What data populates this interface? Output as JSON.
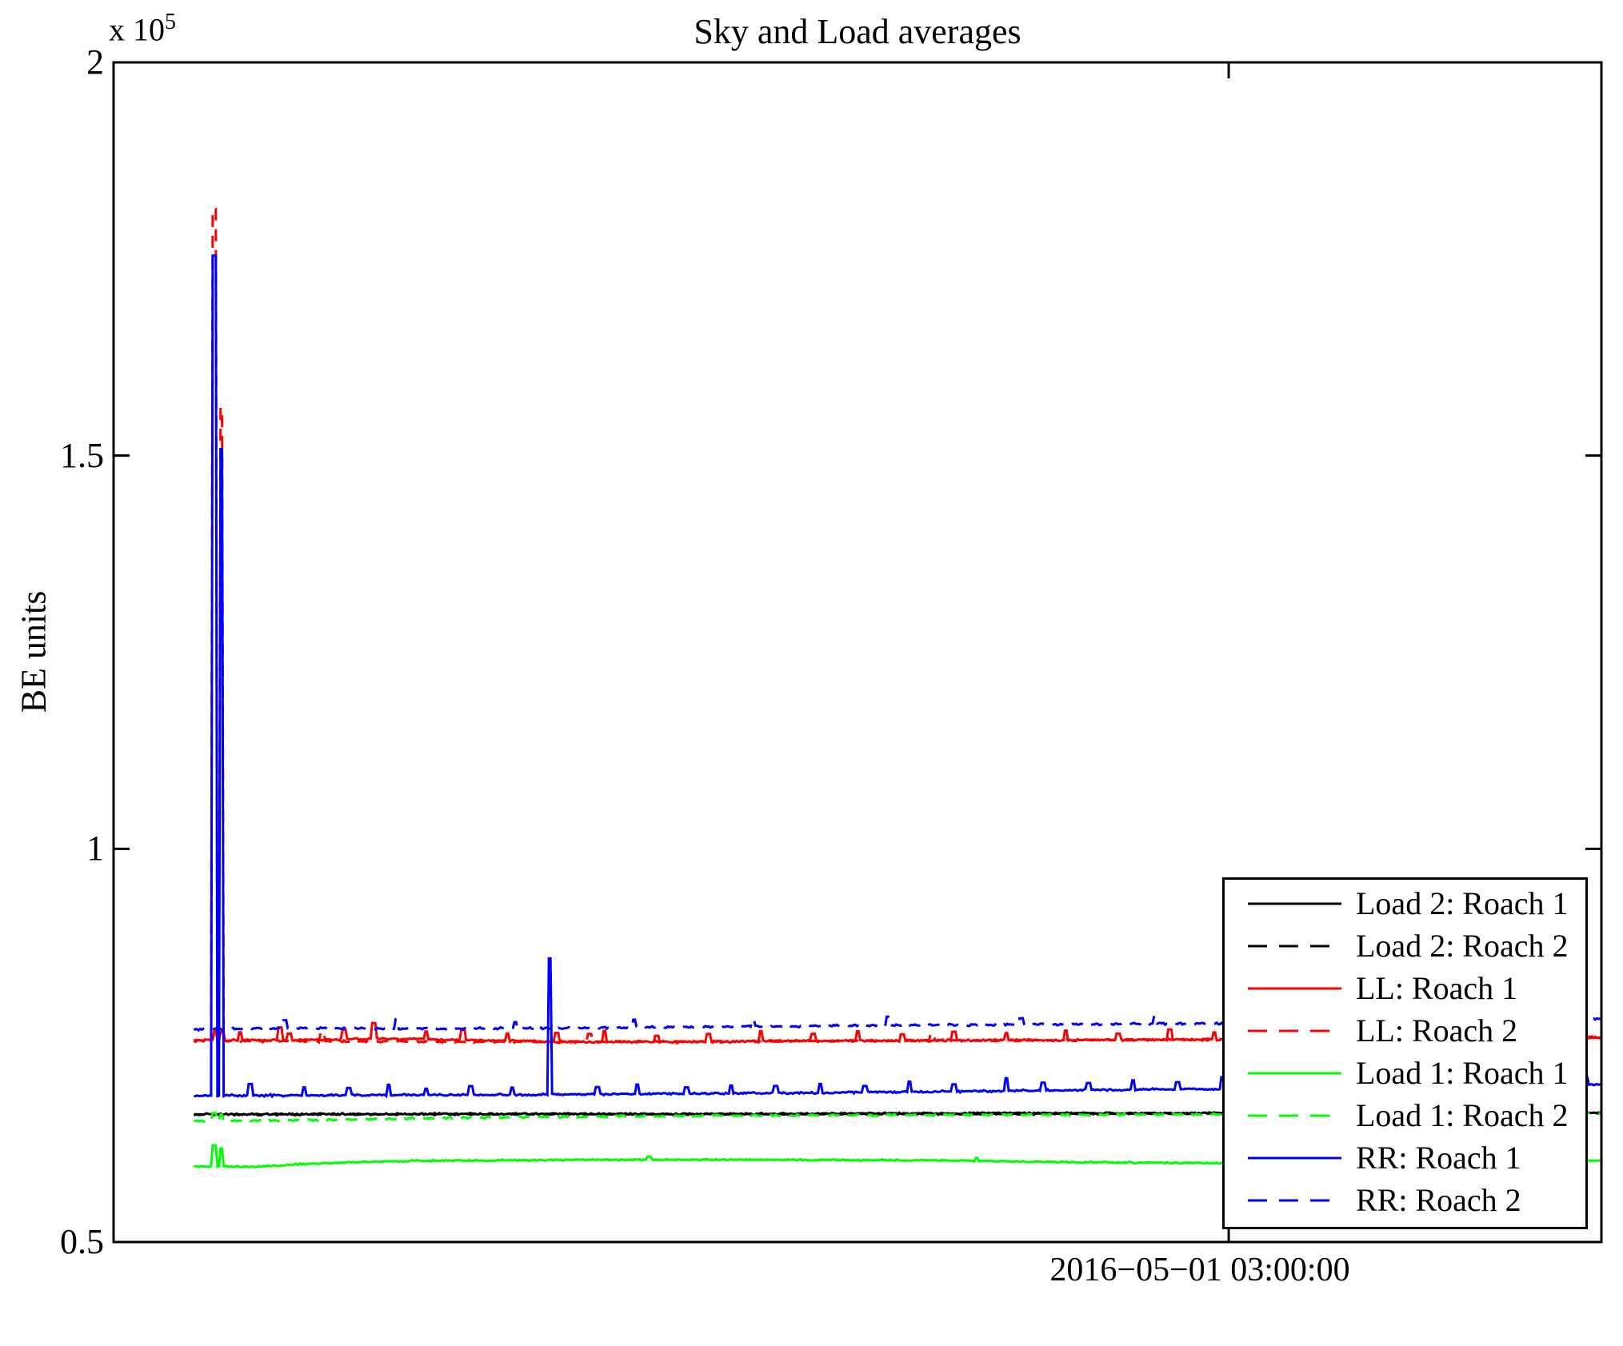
{
  "figure": {
    "background": "#ffffff"
  },
  "chart_data": {
    "type": "line",
    "title": "Sky and Load averages",
    "ylabel": "BE units",
    "xlabel": "",
    "offset": {
      "base": "x 10",
      "exp": "5"
    },
    "ylim": [
      0.5,
      2.0
    ],
    "y_units_multiplier": 100000,
    "grid": false,
    "legend_position": "lower-right-inside",
    "yticks": [
      {
        "v": 0.5,
        "label": "0.5"
      },
      {
        "v": 1.0,
        "label": "1"
      },
      {
        "v": 1.5,
        "label": "1.5"
      },
      {
        "v": 2.0,
        "label": "2"
      }
    ],
    "xticks": [
      {
        "x": 0.7495,
        "label": "2016−05−01 03:00:00"
      }
    ],
    "x_start": 0.054,
    "series": [
      {
        "name": "Load 2: Roach 1",
        "color": "#000000",
        "dashed": false,
        "noise": 0.0013,
        "anchors": [
          [
            0.054,
            0.6625
          ],
          [
            0.2,
            0.663
          ],
          [
            0.4,
            0.6628
          ],
          [
            0.6,
            0.6638
          ],
          [
            0.8,
            0.664
          ],
          [
            1.0,
            0.6648
          ]
        ],
        "spikes": []
      },
      {
        "name": "Load 2: Roach 2",
        "color": "#000000",
        "dashed": true,
        "noise": 0.0013,
        "anchors": [
          [
            0.054,
            0.6618
          ],
          [
            0.25,
            0.6625
          ],
          [
            0.5,
            0.6628
          ],
          [
            0.75,
            0.6632
          ],
          [
            1.0,
            0.664
          ]
        ],
        "spikes": []
      },
      {
        "name": "LL: Roach 1",
        "color": "#ff0000",
        "dashed": false,
        "noise": 0.0015,
        "anchors": [
          [
            0.054,
            0.7565
          ],
          [
            0.12,
            0.757
          ],
          [
            0.18,
            0.7585
          ],
          [
            0.23,
            0.7572
          ],
          [
            0.3,
            0.7548
          ],
          [
            0.38,
            0.7542
          ],
          [
            0.46,
            0.7558
          ],
          [
            0.58,
            0.7565
          ],
          [
            0.7,
            0.7572
          ],
          [
            0.82,
            0.7582
          ],
          [
            0.92,
            0.7592
          ],
          [
            1.0,
            0.7605
          ]
        ],
        "spikes": [
          [
            0.068,
            0.012
          ],
          [
            0.073,
            0.01
          ],
          [
            0.085,
            0.01
          ],
          [
            0.112,
            0.016
          ],
          [
            0.118,
            0.008
          ],
          [
            0.155,
            0.012
          ],
          [
            0.175,
            0.02
          ],
          [
            0.21,
            0.01
          ],
          [
            0.235,
            0.014
          ],
          [
            0.265,
            0.009
          ],
          [
            0.298,
            0.011
          ],
          [
            0.33,
            0.014
          ],
          [
            0.365,
            0.008
          ],
          [
            0.4,
            0.01
          ],
          [
            0.435,
            0.013
          ],
          [
            0.47,
            0.009
          ],
          [
            0.5,
            0.012
          ],
          [
            0.53,
            0.008
          ],
          [
            0.565,
            0.011
          ],
          [
            0.6,
            0.009
          ],
          [
            0.64,
            0.012
          ],
          [
            0.675,
            0.008
          ],
          [
            0.71,
            0.013
          ],
          [
            0.74,
            0.009
          ],
          [
            0.77,
            0.011
          ],
          [
            0.8,
            0.008
          ],
          [
            0.83,
            0.015
          ],
          [
            0.865,
            0.01
          ],
          [
            0.9,
            0.012
          ],
          [
            0.93,
            0.009
          ],
          [
            0.96,
            0.013
          ],
          [
            0.985,
            0.01
          ]
        ]
      },
      {
        "name": "LL: Roach 2",
        "color": "#ff0000",
        "dashed": true,
        "noise": 0.0015,
        "anchors": [
          [
            0.054,
            0.7558
          ],
          [
            0.3,
            0.7545
          ],
          [
            0.6,
            0.7565
          ],
          [
            1.0,
            0.76
          ]
        ],
        "spikes": [
          [
            0.0677,
            1.058
          ],
          [
            0.0726,
            0.805
          ],
          [
            0.14,
            0.012
          ],
          [
            0.32,
            0.01
          ],
          [
            0.55,
            0.009
          ],
          [
            0.78,
            0.011
          ]
        ]
      },
      {
        "name": "Load 1: Roach 1",
        "color": "#00ff00",
        "dashed": false,
        "noise": 0.0012,
        "anchors": [
          [
            0.054,
            0.596
          ],
          [
            0.095,
            0.5958
          ],
          [
            0.13,
            0.5995
          ],
          [
            0.19,
            0.603
          ],
          [
            0.28,
            0.6042
          ],
          [
            0.42,
            0.6048
          ],
          [
            0.54,
            0.604
          ],
          [
            0.64,
            0.6018
          ],
          [
            0.74,
            0.6002
          ],
          [
            0.84,
            0.6012
          ],
          [
            0.93,
            0.603
          ],
          [
            1.0,
            0.6038
          ]
        ],
        "spikes": [
          [
            0.0677,
            0.027
          ],
          [
            0.0726,
            0.023
          ],
          [
            0.36,
            0.004
          ],
          [
            0.58,
            0.004
          ]
        ]
      },
      {
        "name": "Load 1: Roach 2",
        "color": "#00ff00",
        "dashed": true,
        "noise": 0.0014,
        "anchors": [
          [
            0.054,
            0.6538
          ],
          [
            0.1,
            0.6545
          ],
          [
            0.16,
            0.6558
          ],
          [
            0.24,
            0.658
          ],
          [
            0.34,
            0.66
          ],
          [
            0.48,
            0.6612
          ],
          [
            0.64,
            0.6618
          ],
          [
            0.8,
            0.6625
          ],
          [
            1.0,
            0.6635
          ]
        ],
        "spikes": [
          [
            0.0677,
            0.01
          ],
          [
            0.0726,
            0.008
          ]
        ]
      },
      {
        "name": "RR: Roach 1",
        "color": "#0000ff",
        "dashed": false,
        "noise": 0.0015,
        "anchors": [
          [
            0.054,
            0.6862
          ],
          [
            0.15,
            0.6868
          ],
          [
            0.25,
            0.6872
          ],
          [
            0.35,
            0.6882
          ],
          [
            0.45,
            0.6895
          ],
          [
            0.55,
            0.6912
          ],
          [
            0.65,
            0.6932
          ],
          [
            0.75,
            0.6948
          ],
          [
            0.85,
            0.6962
          ],
          [
            0.93,
            0.6985
          ],
          [
            1.0,
            0.7
          ]
        ],
        "spikes": [
          [
            0.0677,
            1.068
          ],
          [
            0.0726,
            0.822
          ],
          [
            0.092,
            0.0145
          ],
          [
            0.128,
            0.01
          ],
          [
            0.158,
            0.009
          ],
          [
            0.185,
            0.013
          ],
          [
            0.21,
            0.008
          ],
          [
            0.24,
            0.011
          ],
          [
            0.268,
            0.009
          ],
          [
            0.293,
            0.173
          ],
          [
            0.325,
            0.009
          ],
          [
            0.352,
            0.012
          ],
          [
            0.385,
            0.008
          ],
          [
            0.415,
            0.01
          ],
          [
            0.445,
            0.009
          ],
          [
            0.475,
            0.011
          ],
          [
            0.505,
            0.008
          ],
          [
            0.535,
            0.013
          ],
          [
            0.565,
            0.009
          ],
          [
            0.6,
            0.016
          ],
          [
            0.625,
            0.01
          ],
          [
            0.655,
            0.009
          ],
          [
            0.685,
            0.012
          ],
          [
            0.715,
            0.009
          ],
          [
            0.745,
            0.015
          ],
          [
            0.775,
            0.01
          ],
          [
            0.805,
            0.009
          ],
          [
            0.835,
            0.012
          ],
          [
            0.862,
            0.018
          ],
          [
            0.89,
            0.01
          ],
          [
            0.915,
            0.013
          ],
          [
            0.945,
            0.009
          ],
          [
            0.97,
            0.02
          ],
          [
            0.99,
            0.01
          ]
        ]
      },
      {
        "name": "RR: Roach 2",
        "color": "#0000ff",
        "dashed": true,
        "noise": 0.0016,
        "anchors": [
          [
            0.054,
            0.77
          ],
          [
            0.12,
            0.7722
          ],
          [
            0.2,
            0.7712
          ],
          [
            0.3,
            0.7718
          ],
          [
            0.4,
            0.7738
          ],
          [
            0.5,
            0.7752
          ],
          [
            0.6,
            0.7765
          ],
          [
            0.7,
            0.7775
          ],
          [
            0.8,
            0.7785
          ],
          [
            0.9,
            0.78
          ],
          [
            1.0,
            0.7838
          ]
        ],
        "spikes": [
          [
            0.115,
            0.01
          ],
          [
            0.19,
            0.012
          ],
          [
            0.27,
            0.008
          ],
          [
            0.35,
            0.01
          ],
          [
            0.43,
            0.009
          ],
          [
            0.52,
            0.011
          ],
          [
            0.61,
            0.008
          ],
          [
            0.7,
            0.01
          ],
          [
            0.79,
            0.009
          ],
          [
            0.88,
            0.012
          ],
          [
            0.96,
            0.009
          ]
        ]
      }
    ]
  }
}
